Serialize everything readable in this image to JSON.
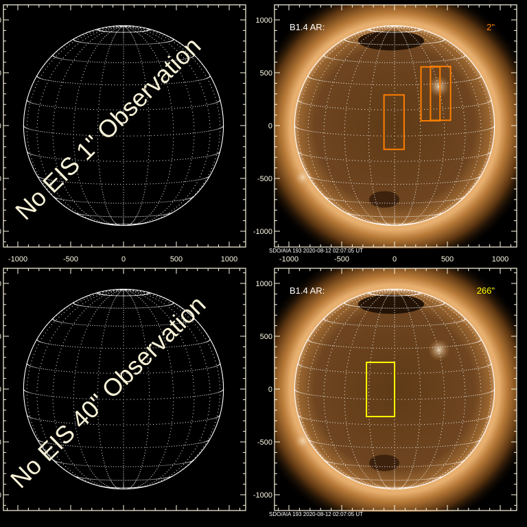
{
  "panels": [
    {
      "id": "top-left",
      "type": "empty",
      "overlay_text": "No EIS 1\" Observation",
      "show_x_labels": true
    },
    {
      "id": "top-right",
      "type": "image",
      "ar_label": "B1.4 AR:",
      "fov_label": "2\"",
      "fov_color": "#ff7f00",
      "footer": "SDO/AIA 193   2020-08-12 02:07:05 UT",
      "show_x_labels": true,
      "boxes": [
        {
          "x": [
            -100,
            90
          ],
          "y": [
            -225,
            290
          ]
        },
        {
          "x": [
            250,
            430
          ],
          "y": [
            45,
            555
          ]
        },
        {
          "x": [
            340,
            530
          ],
          "y": [
            50,
            560
          ]
        }
      ]
    },
    {
      "id": "bottom-left",
      "type": "empty",
      "overlay_text": "No EIS 40\" Observation",
      "show_x_labels": false
    },
    {
      "id": "bottom-right",
      "type": "image",
      "ar_label": "B1.4 AR:",
      "fov_label": "266\"",
      "fov_color": "#ffff00",
      "footer": "SDO/AIA 193   2020-08-12 02:07:05 UT",
      "show_x_labels": false,
      "boxes": [
        {
          "x": [
            -266,
            0
          ],
          "y": [
            -260,
            253
          ]
        }
      ]
    }
  ],
  "axes": {
    "range": [
      -1150,
      1150
    ],
    "tick_labels": [
      "-1000",
      "-500",
      "0",
      "500",
      "1000"
    ],
    "tick_values": [
      -1000,
      -500,
      0,
      500,
      1000
    ],
    "units": "arcsec",
    "grid": "heliographic 15 deg dotted"
  },
  "colors": {
    "axis": "#fffbe6",
    "overlay_text": "#f8f2d8",
    "label": "#ffffff"
  }
}
